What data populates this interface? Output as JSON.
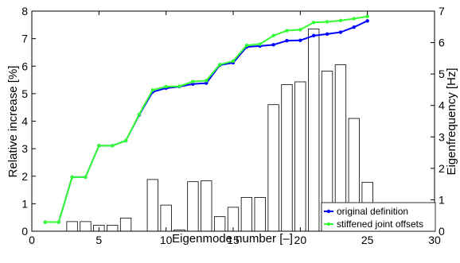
{
  "chart_data": {
    "type": "bar+line",
    "xlabel": "Eigenmode number [–]",
    "ylabel_left": "Relative increase [%]",
    "ylabel_right": "Eigenfrequency [Hz]",
    "xlim": [
      0,
      30
    ],
    "ylim_left": [
      0,
      8
    ],
    "ylim_right": [
      0,
      7
    ],
    "x_ticks": [
      0,
      5,
      10,
      15,
      20,
      25,
      30
    ],
    "y_ticks_left": [
      0,
      1,
      2,
      3,
      4,
      5,
      6,
      7,
      8
    ],
    "y_ticks_right": [
      0,
      1,
      2,
      3,
      4,
      5,
      6,
      7
    ],
    "legend_position": "bottom-right",
    "bars": {
      "axis": "left",
      "x": [
        1,
        2,
        3,
        4,
        5,
        6,
        7,
        8,
        9,
        10,
        11,
        12,
        13,
        14,
        15,
        16,
        17,
        18,
        19,
        20,
        21,
        22,
        23,
        24,
        25
      ],
      "values": [
        0,
        0,
        0.35,
        0.35,
        0.22,
        0.22,
        0.48,
        0,
        1.88,
        0.95,
        0.05,
        1.8,
        1.83,
        0.53,
        0.87,
        1.23,
        1.23,
        4.6,
        5.33,
        5.43,
        7.35,
        5.82,
        6.05,
        4.1,
        1.78
      ]
    },
    "series": [
      {
        "name": "original definition",
        "axis": "right",
        "color": "#0000ff",
        "x": [
          1,
          2,
          3,
          4,
          5,
          6,
          7,
          8,
          9,
          10,
          11,
          12,
          13,
          14,
          15,
          16,
          17,
          18,
          19,
          20,
          21,
          22,
          23,
          24,
          25
        ],
        "values": [
          0.29,
          0.29,
          1.72,
          1.72,
          2.72,
          2.72,
          2.88,
          3.7,
          4.43,
          4.55,
          4.6,
          4.68,
          4.71,
          5.28,
          5.36,
          5.86,
          5.89,
          5.93,
          6.06,
          6.07,
          6.22,
          6.27,
          6.33,
          6.49,
          6.69
        ]
      },
      {
        "name": "stiffened joint offsets",
        "axis": "right",
        "color": "#33ff33",
        "x": [
          1,
          2,
          3,
          4,
          5,
          6,
          7,
          8,
          9,
          10,
          11,
          12,
          13,
          14,
          15,
          16,
          17,
          18,
          19,
          20,
          21,
          22,
          23,
          24,
          25
        ],
        "values": [
          0.29,
          0.29,
          1.72,
          1.72,
          2.72,
          2.72,
          2.88,
          3.72,
          4.49,
          4.6,
          4.61,
          4.76,
          4.79,
          5.3,
          5.41,
          5.91,
          5.95,
          6.22,
          6.38,
          6.41,
          6.64,
          6.66,
          6.7,
          6.76,
          6.83
        ]
      }
    ]
  }
}
